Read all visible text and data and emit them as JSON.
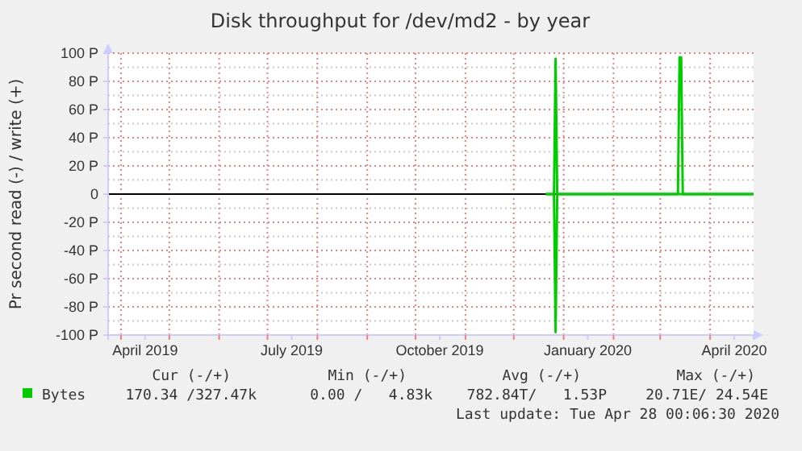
{
  "chart_data": {
    "type": "line",
    "title": "Disk throughput for /dev/md2 - by year",
    "ylabel": "Pr second read (-) / write (+)",
    "x": [
      "2019-12-21",
      "2019-12-26",
      "2019-12-27",
      "2019-12-28",
      "2020-03-12",
      "2020-03-13",
      "2020-03-14",
      "2020-03-15",
      "2020-04-28"
    ],
    "series": [
      {
        "name": "Bytes",
        "color": "#00cc00",
        "values": [
          0,
          0,
          96,
          0,
          0,
          97,
          97,
          0,
          0
        ]
      },
      {
        "color": "#00cc00",
        "x": [
          "2019-12-21",
          "2019-12-26",
          "2019-12-27",
          "2019-12-28",
          "2020-04-28"
        ],
        "values": [
          0,
          0,
          -98,
          0,
          0
        ]
      }
    ],
    "xlim": [
      "2019-03-24",
      "2020-04-28"
    ],
    "xticks": [
      {
        "value": "2019-04-01",
        "label": null
      },
      {
        "value": "2019-04-16",
        "label": "April 2019"
      },
      {
        "value": "2019-05-01",
        "label": null
      },
      {
        "value": "2019-06-01",
        "label": null
      },
      {
        "value": "2019-07-01",
        "label": null
      },
      {
        "value": "2019-07-16",
        "label": "July 2019"
      },
      {
        "value": "2019-08-01",
        "label": null
      },
      {
        "value": "2019-09-01",
        "label": null
      },
      {
        "value": "2019-10-01",
        "label": null
      },
      {
        "value": "2019-10-16",
        "label": "October 2019"
      },
      {
        "value": "2019-11-01",
        "label": null
      },
      {
        "value": "2019-12-01",
        "label": null
      },
      {
        "value": "2020-01-01",
        "label": null
      },
      {
        "value": "2020-01-16",
        "label": "January 2020"
      },
      {
        "value": "2020-02-01",
        "label": null
      },
      {
        "value": "2020-03-01",
        "label": null
      },
      {
        "value": "2020-04-01",
        "label": null
      },
      {
        "value": "2020-04-16",
        "label": "April 2020"
      }
    ],
    "ylim": [
      -100,
      100
    ],
    "yticks": [
      {
        "value": -100,
        "label": "-100 P"
      },
      {
        "value": -80,
        "label": "-80 P"
      },
      {
        "value": -60,
        "label": "-60 P"
      },
      {
        "value": -40,
        "label": "-40 P"
      },
      {
        "value": -20,
        "label": "-20 P"
      },
      0,
      {
        "value": 20,
        "label": "20 P"
      },
      {
        "value": 40,
        "label": "40 P"
      },
      {
        "value": 60,
        "label": "60 P"
      },
      {
        "value": 80,
        "label": "80 P"
      },
      {
        "value": 100,
        "label": "100 P"
      }
    ],
    "grid": true,
    "legend": "bottom",
    "marker": "none",
    "line_style": "solid",
    "ref_lines": [
      {
        "axis": "y",
        "value": 0,
        "color": "#000000"
      }
    ],
    "annotations": [
      "Cur (-/+)",
      "Min (-/+)",
      "Avg (-/+)",
      "Max (-/+)",
      "170.34 /327.47k",
      "0.00 /   4.83k",
      "782.84T/   1.53P",
      "20.71E/ 24.54E",
      "Last update: Tue Apr 28 00:06:30 2020"
    ]
  }
}
